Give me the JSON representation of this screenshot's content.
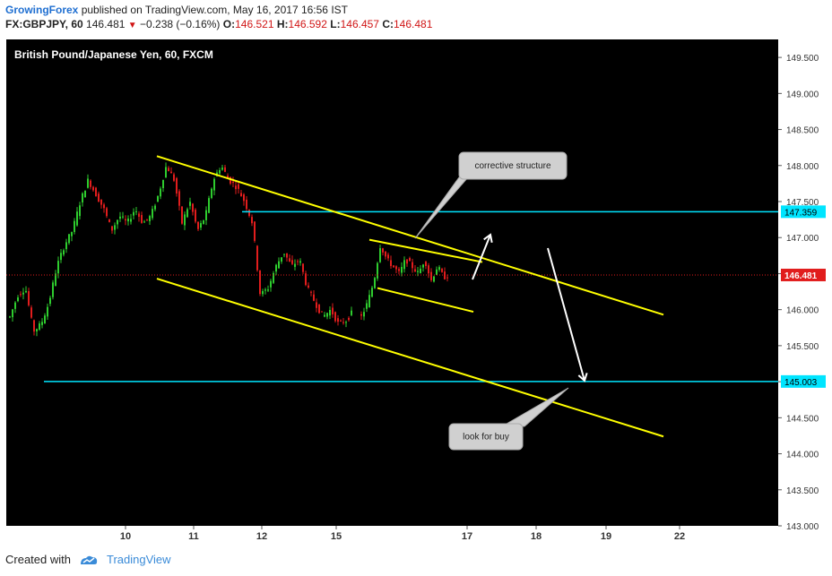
{
  "header": {
    "author": "GrowingForex",
    "published_text": "published on TradingView.com, May 16, 2017 16:56 IST",
    "symbol": "FX:GBPJPY, 60",
    "last": "146.481",
    "change": "−0.238 (−0.16%)",
    "o_label": "O:",
    "o": "146.521",
    "h_label": "H:",
    "h": "146.592",
    "l_label": "L:",
    "l": "146.457",
    "c_label": "C:",
    "c": "146.481"
  },
  "chart_title": "British Pound/Japanese Yen, 60, FXCM",
  "footer": {
    "created_with": "Created with",
    "brand": "TradingView"
  },
  "colors": {
    "background": "#000000",
    "up": "#2ecc2e",
    "down": "#e11d1d",
    "trendline": "#ffff00",
    "level": "#00e5ff",
    "last_price": "#e11d1d"
  },
  "annotations": [
    {
      "text": "corrective structure"
    },
    {
      "text": "look for buy"
    }
  ],
  "chart_data": {
    "type": "candlestick",
    "ylim": [
      143.0,
      149.75
    ],
    "y_ticks": [
      "149.500",
      "149.000",
      "148.500",
      "148.000",
      "147.500",
      "147.000",
      "146.500",
      "146.000",
      "145.500",
      "145.000",
      "144.500",
      "144.000",
      "143.500",
      "143.000"
    ],
    "x_ticks": [
      "10",
      "11",
      "12",
      "15",
      "17",
      "18",
      "19",
      "22"
    ],
    "last_price": "146.481",
    "levels": [
      {
        "value": 147.359,
        "label": "147.359"
      },
      {
        "value": 145.003,
        "label": "145.003"
      }
    ],
    "trendlines": [
      {
        "role": "channel-upper",
        "from": {
          "x": "10",
          "y": 148.13
        },
        "to": {
          "x": "22",
          "y": 145.93
        }
      },
      {
        "role": "channel-lower",
        "from": {
          "x": "10",
          "y": 146.43
        },
        "to": {
          "x": "22",
          "y": 144.24
        }
      },
      {
        "role": "corrective-upper",
        "from": {
          "x": "16",
          "y": 146.97
        },
        "to": {
          "x": "17",
          "y": 146.66
        }
      },
      {
        "role": "corrective-lower",
        "from": {
          "x": "16",
          "y": 146.3
        },
        "to": {
          "x": "17",
          "y": 145.97
        }
      }
    ],
    "candle_path": [
      [
        145.9,
        146.2,
        146.3,
        145.7,
        145.8,
        146.1,
        146.6,
        146.9,
        147.1,
        147.5,
        147.8,
        147.6,
        147.4,
        147.1,
        147.3
      ],
      [
        147.2,
        147.4,
        147.2,
        147.3,
        147.6,
        148.0,
        147.8,
        147.2,
        147.5,
        147.1,
        147.3,
        147.8,
        148.0,
        147.8,
        147.7
      ],
      [
        147.5,
        147.2,
        146.2,
        146.3,
        146.6,
        146.8,
        146.6,
        146.7,
        146.3,
        146.1,
        145.9,
        146.0,
        145.8,
        145.85,
        146.0
      ],
      [
        145.9,
        146.1,
        146.4,
        146.9,
        146.7,
        146.6,
        146.5,
        146.7,
        146.6,
        146.5,
        146.7,
        146.4,
        146.6,
        146.45,
        146.48
      ]
    ]
  }
}
